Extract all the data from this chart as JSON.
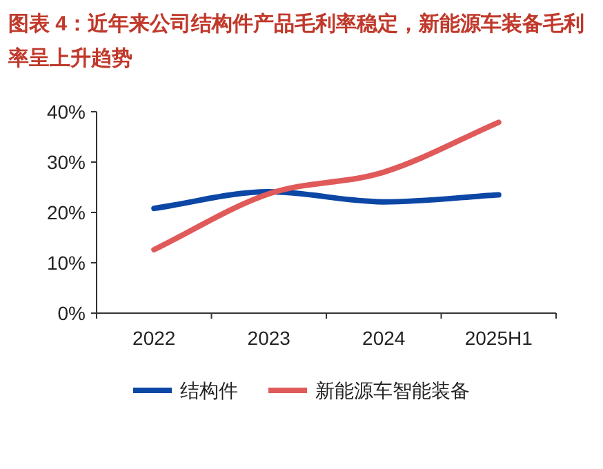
{
  "chart_data": {
    "type": "line",
    "title": "图表 4：近年来公司结构件产品毛利率稳定，新能源车装备毛利率呈上升趋势",
    "categories": [
      "2022",
      "2023",
      "2024",
      "2025H1"
    ],
    "series": [
      {
        "name": "结构件",
        "color": "#0c47a6",
        "values": [
          20.8,
          24.1,
          22.1,
          23.5
        ]
      },
      {
        "name": "新能源车智能装备",
        "color": "#e05a5a",
        "values": [
          12.6,
          23.7,
          28.0,
          37.9
        ]
      }
    ],
    "ylim": [
      0,
      40
    ],
    "yticks": [
      {
        "value": 0,
        "label": "0%"
      },
      {
        "value": 10,
        "label": "10%"
      },
      {
        "value": 20,
        "label": "20%"
      },
      {
        "value": 30,
        "label": "30%"
      },
      {
        "value": 40,
        "label": "40%"
      }
    ],
    "grid": false,
    "legend": "bottom",
    "marker": "none",
    "line_style": "solid"
  }
}
